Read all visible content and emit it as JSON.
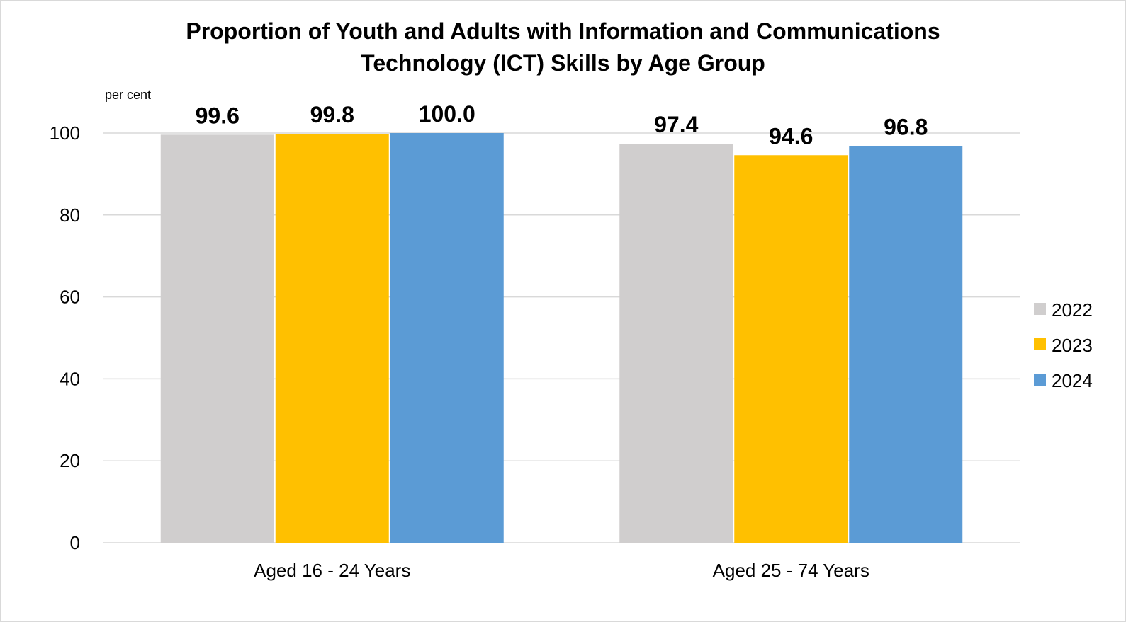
{
  "chart_data": {
    "type": "bar",
    "title_lines": [
      "Proportion of Youth and Adults with Information and Communications",
      "Technology (ICT) Skills by Age Group"
    ],
    "unit_label": "per cent",
    "categories": [
      "Aged 16 - 24 Years",
      "Aged 25 - 74 Years"
    ],
    "series": [
      {
        "name": "2022",
        "color": "#d0cece",
        "values": [
          99.6,
          97.4
        ]
      },
      {
        "name": "2023",
        "color": "#ffc000",
        "values": [
          99.8,
          94.6
        ]
      },
      {
        "name": "2024",
        "color": "#5b9bd5",
        "values": [
          100.0,
          96.8
        ]
      }
    ],
    "ylim": [
      0,
      100
    ],
    "yticks": [
      0,
      20,
      40,
      60,
      80,
      100
    ],
    "grid": true,
    "gridline_color": "#d9d9d9",
    "legend_position": "right",
    "data_labels": true
  }
}
